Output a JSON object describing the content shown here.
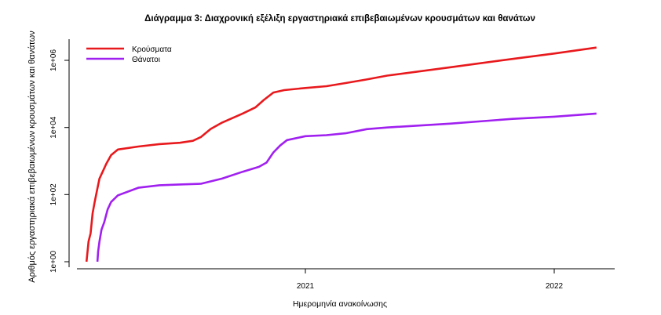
{
  "chart_data": {
    "type": "line",
    "title": "Διάγραμμα 3: Διαχρονική εξέλιξη εργαστηριακά επιβεβαιωμένων κρουσμάτων και θανάτων",
    "xlabel": "Ημερομηνία ανακοίνωσης",
    "ylabel": "Αριθμός εργαστηριακά επιβεβαιωμένων κρουσμάτων και θανάτων",
    "y_scale": "log",
    "grid": false,
    "legend_position": "top-left",
    "yticks": {
      "values": [
        1,
        100,
        10000,
        1000000
      ],
      "labels": [
        "1e+00",
        "1e+02",
        "1e+04",
        "1e+06"
      ]
    },
    "xticks": {
      "values": [
        "2021-01-01",
        "2022-01-01"
      ],
      "labels": [
        "2021",
        "2022"
      ]
    },
    "series": [
      {
        "name": "Κρούσματα",
        "color": "#e8191d",
        "x": [
          "2020-02-15",
          "2020-02-18",
          "2020-02-21",
          "2020-02-24",
          "2020-02-27",
          "2020-03-01",
          "2020-03-05",
          "2020-03-10",
          "2020-03-15",
          "2020-03-22",
          "2020-04-01",
          "2020-05-01",
          "2020-06-01",
          "2020-07-01",
          "2020-07-20",
          "2020-08-01",
          "2020-08-15",
          "2020-09-01",
          "2020-10-01",
          "2020-10-20",
          "2020-11-01",
          "2020-11-15",
          "2020-12-01",
          "2021-01-01",
          "2021-02-01",
          "2021-03-01",
          "2021-04-01",
          "2021-05-01",
          "2021-08-01",
          "2021-11-01",
          "2022-01-01",
          "2022-03-04"
        ],
        "y": [
          1,
          4,
          7,
          28,
          60,
          120,
          300,
          500,
          830,
          1500,
          2200,
          2700,
          3200,
          3500,
          4000,
          5200,
          9000,
          14000,
          26000,
          40000,
          66000,
          110000,
          130000,
          150000,
          170000,
          210000,
          270000,
          350000,
          620000,
          1100000,
          1600000,
          2400000
        ]
      },
      {
        "name": "Θάνατοι",
        "color": "#a020f0",
        "x": [
          "2020-03-02",
          "2020-03-03",
          "2020-03-05",
          "2020-03-08",
          "2020-03-12",
          "2020-03-17",
          "2020-03-22",
          "2020-04-01",
          "2020-05-01",
          "2020-06-01",
          "2020-07-01",
          "2020-08-01",
          "2020-09-01",
          "2020-10-01",
          "2020-10-25",
          "2020-11-05",
          "2020-11-15",
          "2020-11-25",
          "2020-12-05",
          "2021-01-01",
          "2021-02-01",
          "2021-03-01",
          "2021-04-01",
          "2021-05-01",
          "2021-08-01",
          "2021-11-01",
          "2022-01-01",
          "2022-03-04"
        ],
        "y": [
          1,
          2,
          4,
          9,
          15,
          36,
          60,
          95,
          160,
          190,
          200,
          210,
          300,
          480,
          670,
          900,
          1800,
          2900,
          4200,
          5500,
          5900,
          6700,
          8900,
          10000,
          13000,
          18000,
          21000,
          26000
        ]
      }
    ]
  }
}
